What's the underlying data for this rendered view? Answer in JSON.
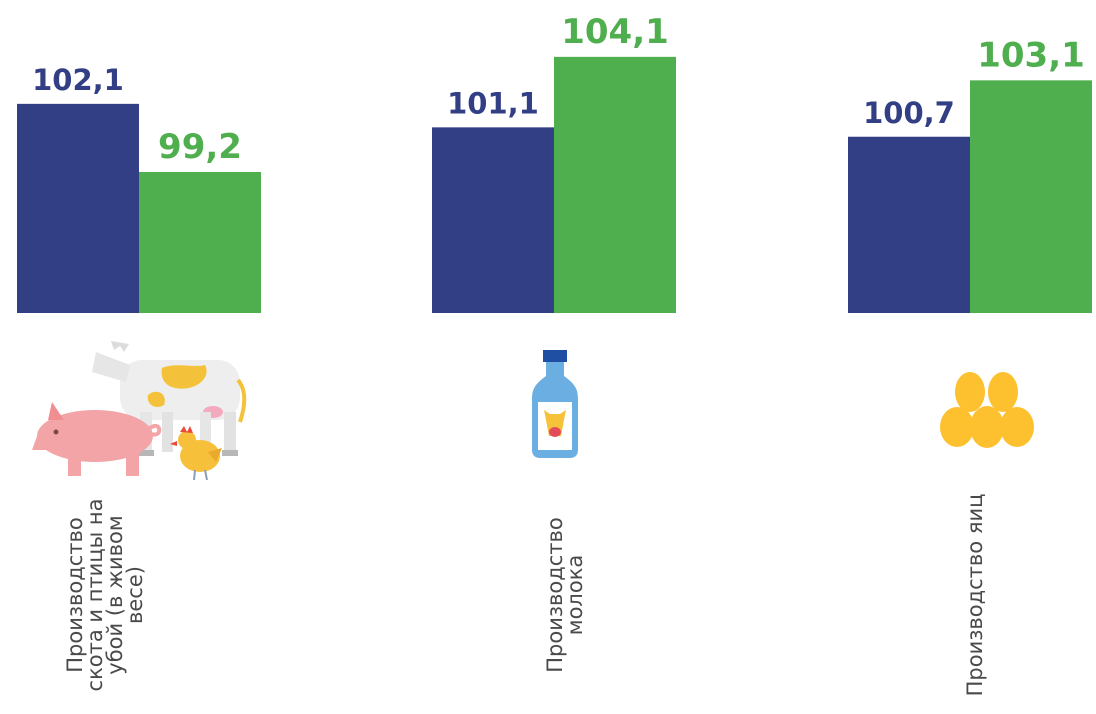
{
  "colors": {
    "series_a": "#333f85",
    "series_b": "#4fae4e"
  },
  "chart_data": {
    "type": "bar",
    "categories": [
      "Производство скота и птицы на убой (в живом весе)",
      "Производство молока",
      "Производство яиц"
    ],
    "series": [
      {
        "values": [
          102.1,
          101.1,
          100.7
        ]
      },
      {
        "values": [
          99.2,
          104.1,
          103.1
        ]
      }
    ],
    "data_labels": [
      [
        "102,1",
        "101,1",
        "100,7"
      ],
      [
        "99,2",
        "104,1",
        "103,1"
      ]
    ],
    "icons": [
      "livestock-icon",
      "milk-bottle-icon",
      "eggs-icon"
    ],
    "title": "",
    "xlabel": "",
    "ylabel": "",
    "grid": false,
    "legend": "none"
  }
}
